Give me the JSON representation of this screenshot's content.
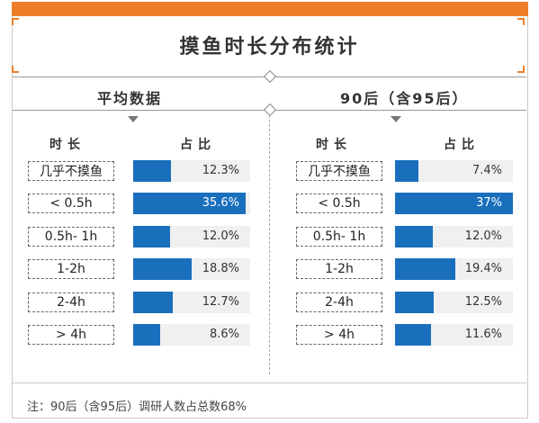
{
  "title": "摸鱼时长分布统计",
  "colors": {
    "accent": "#ee7d2a",
    "bar": "#1a6fbd",
    "bar_bg": "#f0f0f0"
  },
  "chart_data": [
    {
      "type": "bar",
      "title": "平均数据",
      "column_headers": [
        "时长",
        "占比"
      ],
      "categories": [
        "几乎不摸鱼",
        "< 0.5h",
        "0.5h- 1h",
        "1-2h",
        "2-4h",
        "> 4h"
      ],
      "values": [
        12.3,
        35.6,
        12.0,
        18.8,
        12.7,
        8.6
      ],
      "labels": [
        "12.3%",
        "35.6%",
        "12.0%",
        "18.8%",
        "12.7%",
        "8.6%"
      ],
      "unit": "%",
      "orientation": "horizontal"
    },
    {
      "type": "bar",
      "title": "90后（含95后）",
      "column_headers": [
        "时长",
        "占比"
      ],
      "categories": [
        "几乎不摸鱼",
        "< 0.5h",
        "0.5h- 1h",
        "1-2h",
        "2-4h",
        "> 4h"
      ],
      "values": [
        7.4,
        37,
        12.0,
        19.4,
        12.5,
        11.6
      ],
      "labels": [
        "7.4%",
        "37%",
        "12.0%",
        "19.4%",
        "12.5%",
        "11.6%"
      ],
      "unit": "%",
      "orientation": "horizontal"
    }
  ],
  "footnote": "注：90后（含95后）调研人数占总数68%"
}
